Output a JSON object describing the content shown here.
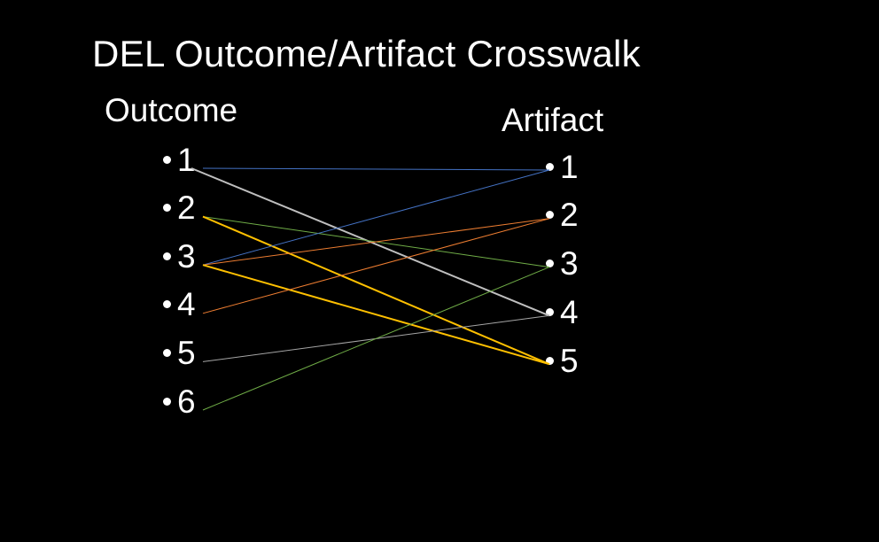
{
  "title": "DEL Outcome/Artifact Crosswalk",
  "outcome": {
    "heading": "Outcome",
    "items": [
      "1",
      "2",
      "3",
      "4",
      "5",
      "6"
    ]
  },
  "artifact": {
    "heading": "Artifact",
    "items": [
      "1",
      "2",
      "3",
      "4",
      "5"
    ]
  },
  "colors": {
    "background": "#000000",
    "text": "#ffffff",
    "blue": "#4472c4",
    "gray": "#bfbfbf",
    "green": "#70ad47",
    "gold": "#ffc000",
    "orange": "#ed7d31",
    "light_gray": "#a6a6a6"
  },
  "links": [
    {
      "outcome": "1",
      "artifact": "1",
      "color": "#4472c4"
    },
    {
      "outcome": "1",
      "artifact": "4",
      "color": "#bfbfbf",
      "thick": true
    },
    {
      "outcome": "2",
      "artifact": "3",
      "color": "#70ad47"
    },
    {
      "outcome": "2",
      "artifact": "5",
      "color": "#ffc000",
      "thick": true
    },
    {
      "outcome": "3",
      "artifact": "1",
      "color": "#4472c4"
    },
    {
      "outcome": "3",
      "artifact": "2",
      "color": "#ed7d31"
    },
    {
      "outcome": "3",
      "artifact": "5",
      "color": "#ffc000",
      "thick": true
    },
    {
      "outcome": "4",
      "artifact": "2",
      "color": "#ed7d31"
    },
    {
      "outcome": "5",
      "artifact": "4",
      "color": "#a6a6a6"
    },
    {
      "outcome": "6",
      "artifact": "3",
      "color": "#70ad47"
    }
  ]
}
